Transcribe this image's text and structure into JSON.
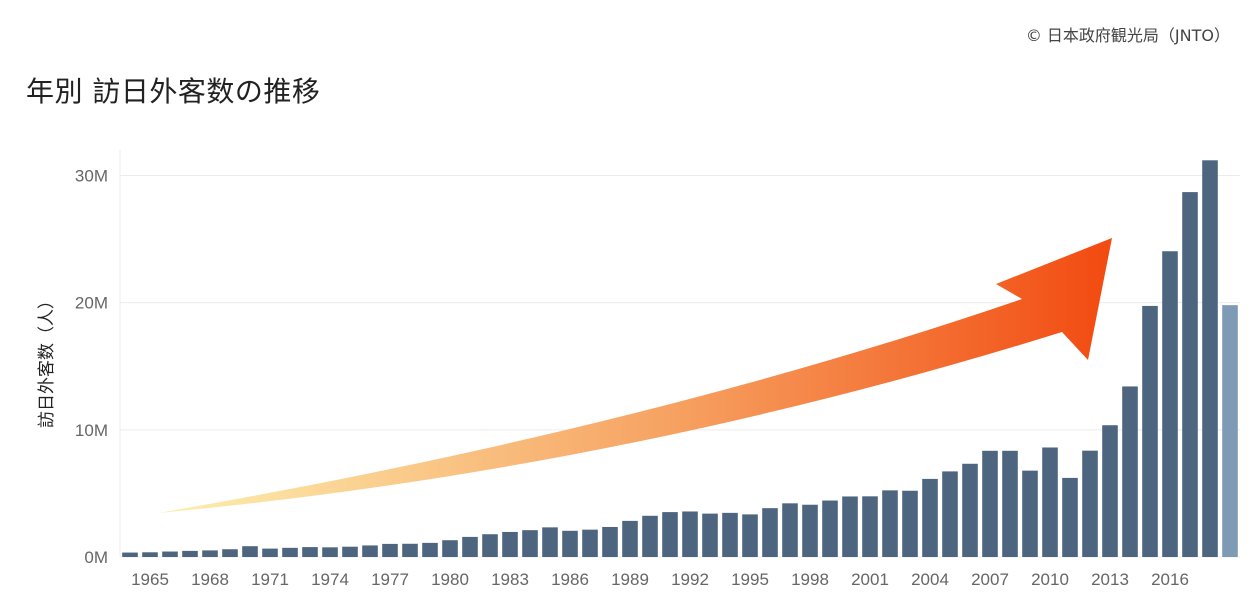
{
  "copyright": "© 日本政府観光局（JNTO）",
  "title": "年別 訪日外客数の推移",
  "colors": {
    "bar": "#4e6580",
    "bar_latest": "#7f9ab5",
    "grid": "#ececec",
    "arrow_start": "#fdf0b0",
    "arrow_mid": "#f6a060",
    "arrow_end": "#f24a10"
  },
  "chart_data": {
    "type": "bar",
    "ylabel": "訪日外客数（人）",
    "ylim": [
      0,
      32000000
    ],
    "y_ticks": [
      {
        "value": 0,
        "label": "0M"
      },
      {
        "value": 10000000,
        "label": "10M"
      },
      {
        "value": 20000000,
        "label": "20M"
      },
      {
        "value": 30000000,
        "label": "30M"
      }
    ],
    "x_tick_labels": [
      "1965",
      "1968",
      "1971",
      "1974",
      "1977",
      "1980",
      "1983",
      "1986",
      "1989",
      "1992",
      "1995",
      "1998",
      "2001",
      "2004",
      "2007",
      "2010",
      "2013",
      "2016"
    ],
    "categories": [
      "1964",
      "1965",
      "1966",
      "1967",
      "1968",
      "1969",
      "1970",
      "1971",
      "1972",
      "1973",
      "1974",
      "1975",
      "1976",
      "1977",
      "1978",
      "1979",
      "1980",
      "1981",
      "1982",
      "1983",
      "1984",
      "1985",
      "1986",
      "1987",
      "1988",
      "1989",
      "1990",
      "1991",
      "1992",
      "1993",
      "1994",
      "1995",
      "1996",
      "1997",
      "1998",
      "1999",
      "2000",
      "2001",
      "2002",
      "2003",
      "2004",
      "2005",
      "2006",
      "2007",
      "2008",
      "2009",
      "2010",
      "2011",
      "2012",
      "2013",
      "2014",
      "2015",
      "2016",
      "2017",
      "2018",
      "2019"
    ],
    "values": [
      350000,
      370000,
      430000,
      480000,
      520000,
      610000,
      850000,
      660000,
      720000,
      780000,
      760000,
      810000,
      910000,
      1030000,
      1040000,
      1110000,
      1320000,
      1580000,
      1790000,
      1970000,
      2110000,
      2330000,
      2060000,
      2150000,
      2360000,
      2840000,
      3240000,
      3530000,
      3580000,
      3410000,
      3470000,
      3350000,
      3840000,
      4220000,
      4110000,
      4440000,
      4760000,
      4770000,
      5240000,
      5210000,
      6140000,
      6730000,
      7330000,
      8350000,
      8350000,
      6790000,
      8610000,
      6220000,
      8360000,
      10360000,
      13410000,
      19740000,
      24040000,
      28690000,
      31190000,
      19800000
    ],
    "highlight_last": true,
    "annotation": "growth-arrow"
  }
}
